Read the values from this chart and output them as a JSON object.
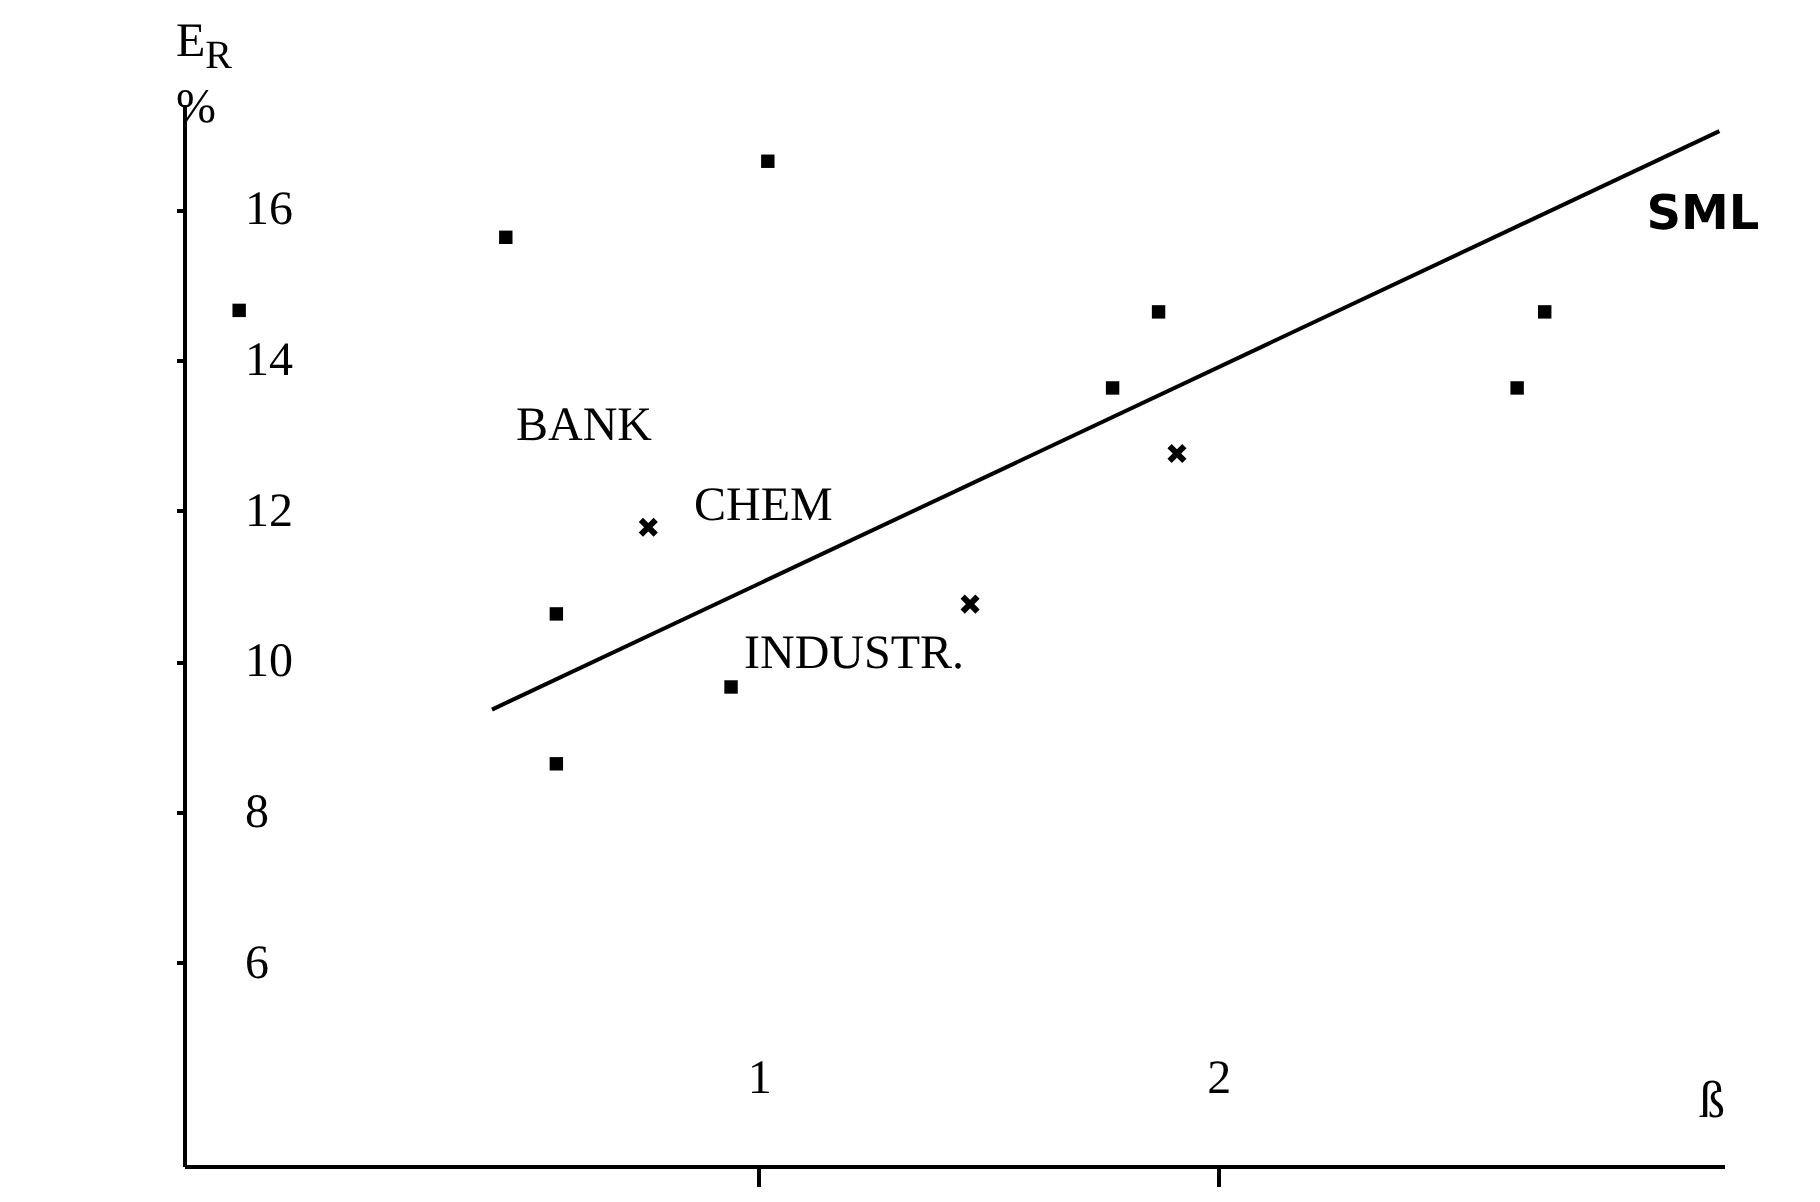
{
  "chart_data": {
    "type": "scatter",
    "xlabel": "ß",
    "ylabel": "E$_{R}$ %",
    "xlim": [
      -0.25,
      3.1
    ],
    "ylim": [
      3.3,
      17.4
    ],
    "xticks": [
      1,
      2
    ],
    "yticks": [
      6,
      8,
      10,
      12,
      14,
      16
    ],
    "grid": false,
    "series": [
      {
        "marker": "square",
        "color": "#000000",
        "x": [
          -0.13,
          0.45,
          1.02,
          0.56,
          0.56,
          0.94,
          1.77,
          1.87,
          2.65,
          2.71
        ],
        "values": [
          14.66,
          15.63,
          16.64,
          10.63,
          8.64,
          9.66,
          13.63,
          14.64,
          13.63,
          14.64
        ]
      },
      {
        "marker": "cross",
        "color": "#000000",
        "x": [
          0.76,
          1.46,
          1.91
        ],
        "values": [
          11.78,
          10.76,
          12.76
        ]
      },
      {
        "type": "line",
        "name": "SML",
        "color": "#000000",
        "x": [
          0.42,
          3.09
        ],
        "values": [
          9.36,
          17.04
        ]
      }
    ],
    "annotations": [
      "BANK",
      "CHEM",
      "INDUSTR."
    ]
  }
}
